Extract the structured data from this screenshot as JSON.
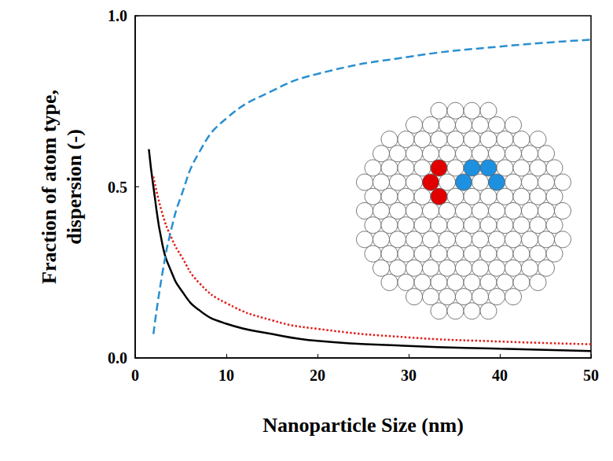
{
  "chart_data": {
    "type": "line",
    "x_label": "Nanoparticle Size (nm)",
    "y_label": "Fraction of atom type,\ndispersion (-)",
    "x": [
      1.5,
      2,
      3,
      4,
      5,
      7,
      10,
      15,
      20,
      30,
      40,
      50
    ],
    "series": [
      {
        "color": "#000000",
        "line_style": "solid",
        "values": [
          0.61,
          0.5,
          0.33,
          0.25,
          0.2,
          0.14,
          0.1,
          0.07,
          0.05,
          0.035,
          0.027,
          0.02
        ]
      },
      {
        "color": "#e0201c",
        "line_style": "dotted",
        "values": [
          null,
          0.53,
          0.42,
          0.35,
          0.3,
          0.22,
          0.16,
          0.11,
          0.085,
          0.06,
          0.048,
          0.04
        ]
      },
      {
        "color": "#2a8fd0",
        "line_style": "dashed",
        "values": [
          null,
          0.07,
          0.25,
          0.38,
          0.47,
          0.6,
          0.7,
          0.78,
          0.83,
          0.88,
          0.91,
          0.93
        ]
      }
    ],
    "xlim": [
      0,
      50
    ],
    "xticks": [
      0,
      10,
      20,
      30,
      40,
      50
    ],
    "ylim": [
      0,
      1
    ],
    "yticks": [
      {
        "value": 0,
        "label": "0.0"
      },
      {
        "value": 0.5,
        "label": "0.5"
      },
      {
        "value": 1,
        "label": "1.0"
      }
    ],
    "grid": false,
    "marker": "none"
  }
}
